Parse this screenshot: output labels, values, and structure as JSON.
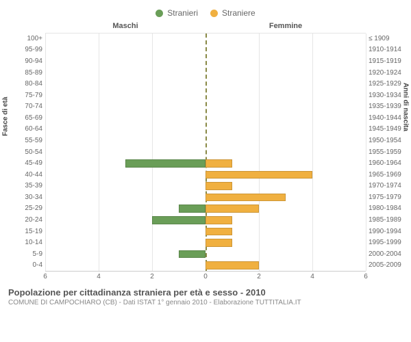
{
  "legend": {
    "male": {
      "label": "Stranieri",
      "color": "#6a9e58"
    },
    "female": {
      "label": "Straniere",
      "color": "#f0b040"
    }
  },
  "colHeaders": {
    "left": "Maschi",
    "right": "Femmine"
  },
  "axisLabels": {
    "left": "Fasce di età",
    "right": "Anni di nascita"
  },
  "xTicks": [
    6,
    4,
    2,
    0,
    2,
    4,
    6
  ],
  "xMax": 6,
  "grid_color": "#e5e5e5",
  "centerline_color": "#888844",
  "rows": [
    {
      "age": "100+",
      "birth": "≤ 1909",
      "m": 0,
      "f": 0
    },
    {
      "age": "95-99",
      "birth": "1910-1914",
      "m": 0,
      "f": 0
    },
    {
      "age": "90-94",
      "birth": "1915-1919",
      "m": 0,
      "f": 0
    },
    {
      "age": "85-89",
      "birth": "1920-1924",
      "m": 0,
      "f": 0
    },
    {
      "age": "80-84",
      "birth": "1925-1929",
      "m": 0,
      "f": 0
    },
    {
      "age": "75-79",
      "birth": "1930-1934",
      "m": 0,
      "f": 0
    },
    {
      "age": "70-74",
      "birth": "1935-1939",
      "m": 0,
      "f": 0
    },
    {
      "age": "65-69",
      "birth": "1940-1944",
      "m": 0,
      "f": 0
    },
    {
      "age": "60-64",
      "birth": "1945-1949",
      "m": 0,
      "f": 0
    },
    {
      "age": "55-59",
      "birth": "1950-1954",
      "m": 0,
      "f": 0
    },
    {
      "age": "50-54",
      "birth": "1955-1959",
      "m": 0,
      "f": 0
    },
    {
      "age": "45-49",
      "birth": "1960-1964",
      "m": 3,
      "f": 1
    },
    {
      "age": "40-44",
      "birth": "1965-1969",
      "m": 0,
      "f": 4
    },
    {
      "age": "35-39",
      "birth": "1970-1974",
      "m": 0,
      "f": 1
    },
    {
      "age": "30-34",
      "birth": "1975-1979",
      "m": 0,
      "f": 3
    },
    {
      "age": "25-29",
      "birth": "1980-1984",
      "m": 1,
      "f": 2
    },
    {
      "age": "20-24",
      "birth": "1985-1989",
      "m": 2,
      "f": 1
    },
    {
      "age": "15-19",
      "birth": "1990-1994",
      "m": 0,
      "f": 1
    },
    {
      "age": "10-14",
      "birth": "1995-1999",
      "m": 0,
      "f": 1
    },
    {
      "age": "5-9",
      "birth": "2000-2004",
      "m": 1,
      "f": 0
    },
    {
      "age": "0-4",
      "birth": "2005-2009",
      "m": 0,
      "f": 2
    }
  ],
  "titles": {
    "main": "Popolazione per cittadinanza straniera per età e sesso - 2010",
    "sub": "COMUNE DI CAMPOCHIARO (CB) - Dati ISTAT 1° gennaio 2010 - Elaborazione TUTTITALIA.IT"
  }
}
